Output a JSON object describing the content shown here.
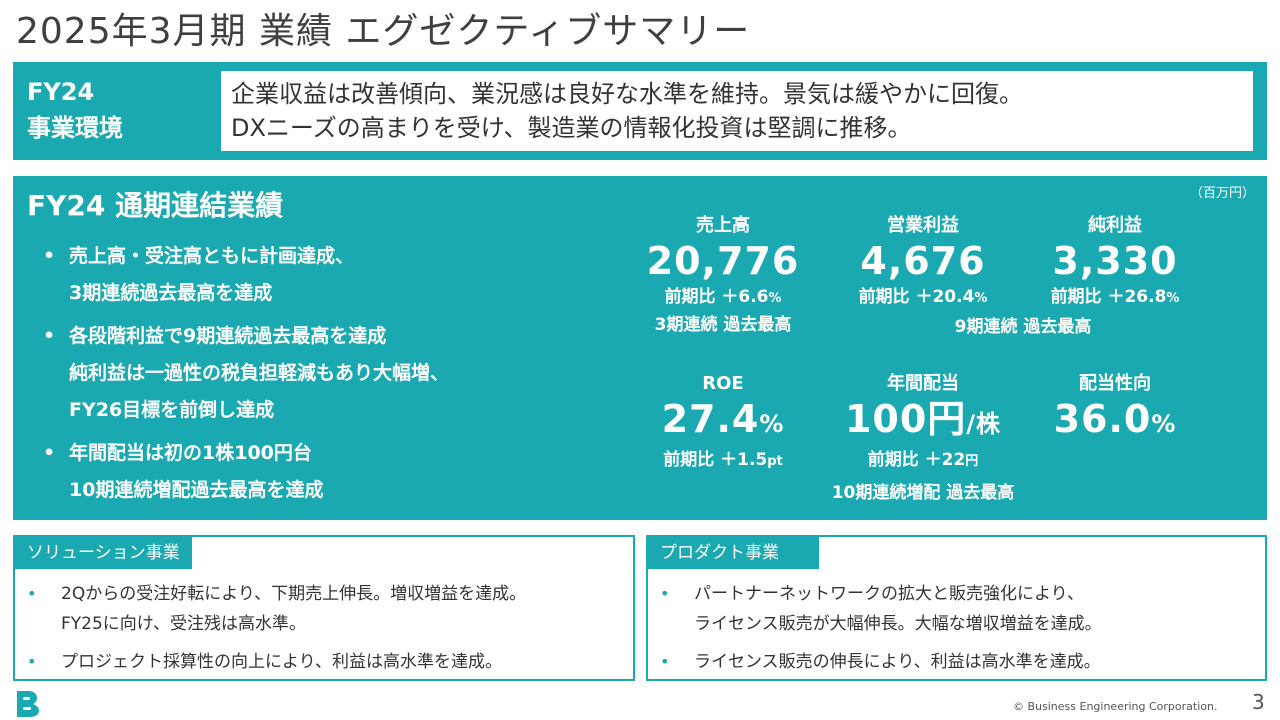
{
  "title": "2025年3月期 業績 エグゼクティブサマリー",
  "environment": {
    "label_line1": "FY24",
    "label_line2": "事業環境",
    "text_line1": "企業収益は改善傾向、業況感は良好な水準を維持。景気は緩やかに回復。",
    "text_line2": "DXニーズの高まりを受け、製造業の情報化投資は堅調に推移。"
  },
  "results": {
    "title": "FY24 通期連結業績",
    "unit": "（百万円）",
    "bullet_mark": "•",
    "bullets": [
      {
        "line1": "売上高・受注高ともに計画達成、",
        "line2": "3期連続過去最高を達成",
        "line3": ""
      },
      {
        "line1": "各段階利益で9期連続過去最高を達成",
        "line2": "純利益は一過性の税負担軽減もあり大幅増、",
        "line3": "FY26目標を前倒し達成"
      },
      {
        "line1": "年間配当は初の1株100円台",
        "line2": "10期連続増配過去最高を達成",
        "line3": ""
      }
    ],
    "metrics": {
      "sales": {
        "label": "売上高",
        "value": "20,776",
        "yoy": "前期比 ＋6.6",
        "yoy_unit": "%",
        "note": "3期連続 過去最高"
      },
      "operating_profit": {
        "label": "営業利益",
        "value": "4,676",
        "yoy": "前期比 ＋20.4",
        "yoy_unit": "%"
      },
      "net_profit": {
        "label": "純利益",
        "value": "3,330",
        "yoy": "前期比 ＋26.8",
        "yoy_unit": "%"
      },
      "profit_note": "9期連続 過去最高",
      "roe": {
        "label": "ROE",
        "value": "27.4",
        "value_unit": "%",
        "yoy": "前期比 ＋1.5",
        "yoy_unit": "pt"
      },
      "dividend": {
        "label": "年間配当",
        "value": "100円",
        "value_unit": "/株",
        "yoy": "前期比 ＋22",
        "yoy_unit": "円",
        "note": "10期連続増配 過去最高"
      },
      "payout": {
        "label": "配当性向",
        "value": "36.0",
        "value_unit": "%"
      }
    }
  },
  "solution": {
    "tag": "ソリューション事業",
    "items": [
      {
        "line1": "2Qからの受注好転により、下期売上伸長。増収増益を達成。",
        "line2": "FY25に向け、受注残は高水準。"
      },
      {
        "line1": "プロジェクト採算性の向上により、利益は高水準を達成。",
        "line2": ""
      }
    ]
  },
  "product": {
    "tag": "プロダクト事業",
    "items": [
      {
        "line1": "パートナーネットワークの拡大と販売強化により、",
        "line2": "ライセンス販売が大幅伸長。大幅な増収増益を達成。"
      },
      {
        "line1": "ライセンス販売の伸長により、利益は高水準を達成。",
        "line2": ""
      }
    ]
  },
  "footer": {
    "copyright": "© Business Engineering Corporation.",
    "page": "3",
    "logo_icon": "b-logo-icon",
    "brand_color": "#1aa9b1"
  }
}
